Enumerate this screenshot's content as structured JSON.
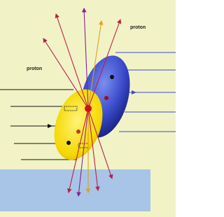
{
  "labels": {
    "left_proton": "proton",
    "right_proton": "proton"
  }
}
